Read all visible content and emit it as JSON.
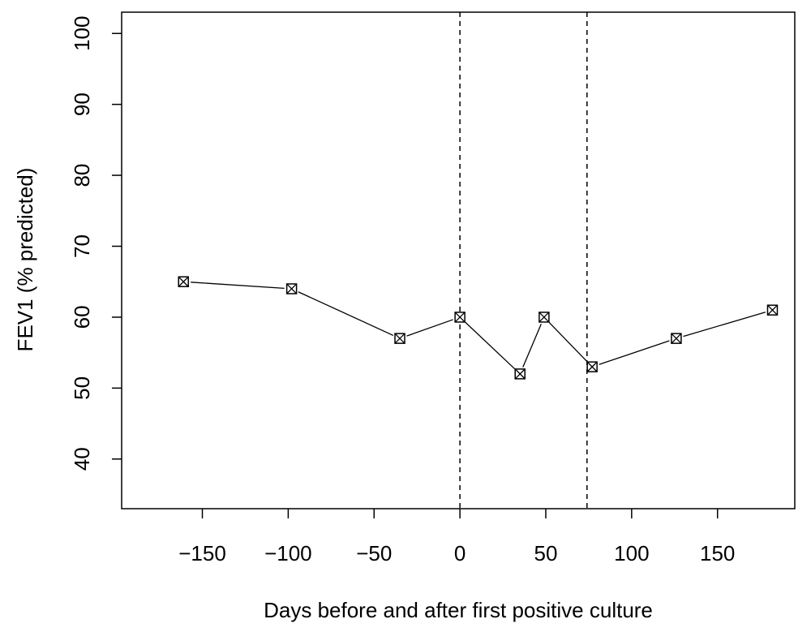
{
  "chart_data": {
    "type": "line",
    "title": "",
    "xlabel": "Days before and after first positive culture",
    "ylabel": "FEV1 (% predicted)",
    "xlim": [
      -197,
      195
    ],
    "ylim": [
      33,
      103
    ],
    "x_ticks": [
      -150,
      -100,
      -50,
      0,
      50,
      100,
      150
    ],
    "x_tick_labels": [
      "−150",
      "−100",
      "−50",
      "0",
      "50",
      "100",
      "150"
    ],
    "y_ticks": [
      40,
      50,
      60,
      70,
      80,
      90,
      100
    ],
    "y_tick_labels": [
      "40",
      "50",
      "60",
      "70",
      "80",
      "90",
      "100"
    ],
    "grid": false,
    "marker": "boxed-x",
    "reference_lines_x": [
      0,
      74
    ],
    "series": [
      {
        "x": [
          -161,
          -98,
          -35,
          0,
          35,
          49,
          77,
          126,
          182
        ],
        "values": [
          65,
          64,
          57,
          60,
          52,
          60,
          53,
          57,
          61
        ]
      }
    ]
  }
}
